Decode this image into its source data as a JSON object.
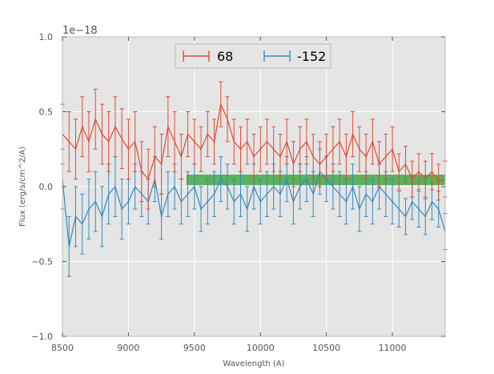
{
  "chart_data": {
    "type": "line",
    "xlabel": "Wavelength (A)",
    "ylabel": "Flux (erg/s/cm^2/A)",
    "y_offset_label": "1e−18",
    "xlim": [
      8500,
      11400
    ],
    "ylim": [
      -1.0,
      1.0
    ],
    "xticks": [
      8500,
      9000,
      9500,
      10000,
      10500,
      11000
    ],
    "xtick_labels": [
      "8500",
      "9000",
      "9500",
      "10000",
      "10500",
      "11000"
    ],
    "yticks": [
      -1.0,
      -0.5,
      0.0,
      0.5,
      1.0
    ],
    "ytick_labels": [
      "−1.0",
      "−0.5",
      "0.0",
      "0.5",
      "1.0"
    ],
    "grid": true,
    "legend_position": "top-center",
    "band": {
      "x_start": 9440,
      "x_end": 11400,
      "y_low": 0.01,
      "y_high": 0.08,
      "color": "#2ca02c"
    },
    "series": [
      {
        "name": "68",
        "color": "#e24a33",
        "x": [
          8500,
          8550,
          8600,
          8650,
          8700,
          8750,
          8800,
          8850,
          8900,
          8950,
          9000,
          9050,
          9100,
          9150,
          9200,
          9250,
          9300,
          9350,
          9400,
          9450,
          9500,
          9550,
          9600,
          9650,
          9700,
          9750,
          9800,
          9850,
          9900,
          9950,
          10000,
          10050,
          10100,
          10150,
          10200,
          10250,
          10300,
          10350,
          10400,
          10450,
          10500,
          10550,
          10600,
          10650,
          10700,
          10750,
          10800,
          10850,
          10900,
          10950,
          11000,
          11050,
          11100,
          11150,
          11200,
          11250,
          11300,
          11350,
          11400
        ],
        "values": [
          0.35,
          0.3,
          0.25,
          0.4,
          0.3,
          0.45,
          0.35,
          0.3,
          0.4,
          0.32,
          0.25,
          0.3,
          0.1,
          0.05,
          0.2,
          0.15,
          0.4,
          0.3,
          0.2,
          0.35,
          0.3,
          0.25,
          0.35,
          0.3,
          0.55,
          0.45,
          0.3,
          0.25,
          0.3,
          0.2,
          0.25,
          0.3,
          0.25,
          0.2,
          0.3,
          0.15,
          0.25,
          0.3,
          0.2,
          0.15,
          0.2,
          0.25,
          0.3,
          0.2,
          0.35,
          0.25,
          0.2,
          0.3,
          0.15,
          0.2,
          0.25,
          0.1,
          0.15,
          0.05,
          0.1,
          0.05,
          0.1,
          0.03,
          0.05
        ],
        "errors": [
          0.2,
          0.2,
          0.2,
          0.2,
          0.2,
          0.2,
          0.2,
          0.2,
          0.2,
          0.2,
          0.2,
          0.2,
          0.2,
          0.2,
          0.2,
          0.2,
          0.2,
          0.2,
          0.15,
          0.15,
          0.15,
          0.15,
          0.15,
          0.15,
          0.15,
          0.15,
          0.15,
          0.15,
          0.15,
          0.15,
          0.15,
          0.15,
          0.15,
          0.15,
          0.15,
          0.15,
          0.15,
          0.15,
          0.15,
          0.15,
          0.15,
          0.15,
          0.15,
          0.15,
          0.15,
          0.15,
          0.15,
          0.15,
          0.15,
          0.15,
          0.15,
          0.12,
          0.12,
          0.12,
          0.12,
          0.12,
          0.12,
          0.12,
          0.12
        ]
      },
      {
        "name": "-152",
        "color": "#348abd",
        "x": [
          8500,
          8550,
          8600,
          8650,
          8700,
          8750,
          8800,
          8850,
          8900,
          8950,
          9000,
          9050,
          9100,
          9150,
          9200,
          9250,
          9300,
          9350,
          9400,
          9450,
          9500,
          9550,
          9600,
          9650,
          9700,
          9750,
          9800,
          9850,
          9900,
          9950,
          10000,
          10050,
          10100,
          10150,
          10200,
          10250,
          10300,
          10350,
          10400,
          10450,
          10500,
          10550,
          10600,
          10650,
          10700,
          10750,
          10800,
          10850,
          10900,
          10950,
          11000,
          11050,
          11100,
          11150,
          11200,
          11250,
          11300,
          11350,
          11400
        ],
        "values": [
          0.05,
          -0.4,
          -0.2,
          -0.25,
          -0.15,
          -0.1,
          -0.2,
          -0.05,
          0.0,
          -0.15,
          -0.1,
          0.0,
          -0.05,
          -0.1,
          0.05,
          -0.2,
          -0.05,
          0.0,
          -0.1,
          -0.05,
          0.0,
          -0.15,
          -0.1,
          -0.05,
          0.05,
          0.0,
          -0.1,
          -0.05,
          -0.15,
          0.0,
          -0.1,
          -0.05,
          0.0,
          -0.05,
          0.05,
          -0.1,
          0.0,
          0.05,
          -0.05,
          0.1,
          0.05,
          0.0,
          -0.05,
          -0.1,
          0.0,
          -0.15,
          -0.05,
          -0.1,
          0.0,
          -0.05,
          -0.1,
          -0.15,
          -0.2,
          -0.1,
          -0.15,
          -0.2,
          -0.1,
          -0.15,
          -0.3
        ],
        "errors": [
          0.2,
          0.2,
          0.2,
          0.2,
          0.2,
          0.2,
          0.2,
          0.2,
          0.2,
          0.2,
          0.15,
          0.15,
          0.15,
          0.15,
          0.15,
          0.15,
          0.15,
          0.15,
          0.15,
          0.15,
          0.15,
          0.15,
          0.15,
          0.15,
          0.15,
          0.15,
          0.15,
          0.15,
          0.15,
          0.15,
          0.15,
          0.15,
          0.15,
          0.15,
          0.15,
          0.15,
          0.15,
          0.15,
          0.15,
          0.15,
          0.15,
          0.15,
          0.15,
          0.15,
          0.15,
          0.15,
          0.15,
          0.15,
          0.15,
          0.15,
          0.15,
          0.12,
          0.12,
          0.12,
          0.12,
          0.12,
          0.12,
          0.12,
          0.12
        ]
      }
    ]
  }
}
